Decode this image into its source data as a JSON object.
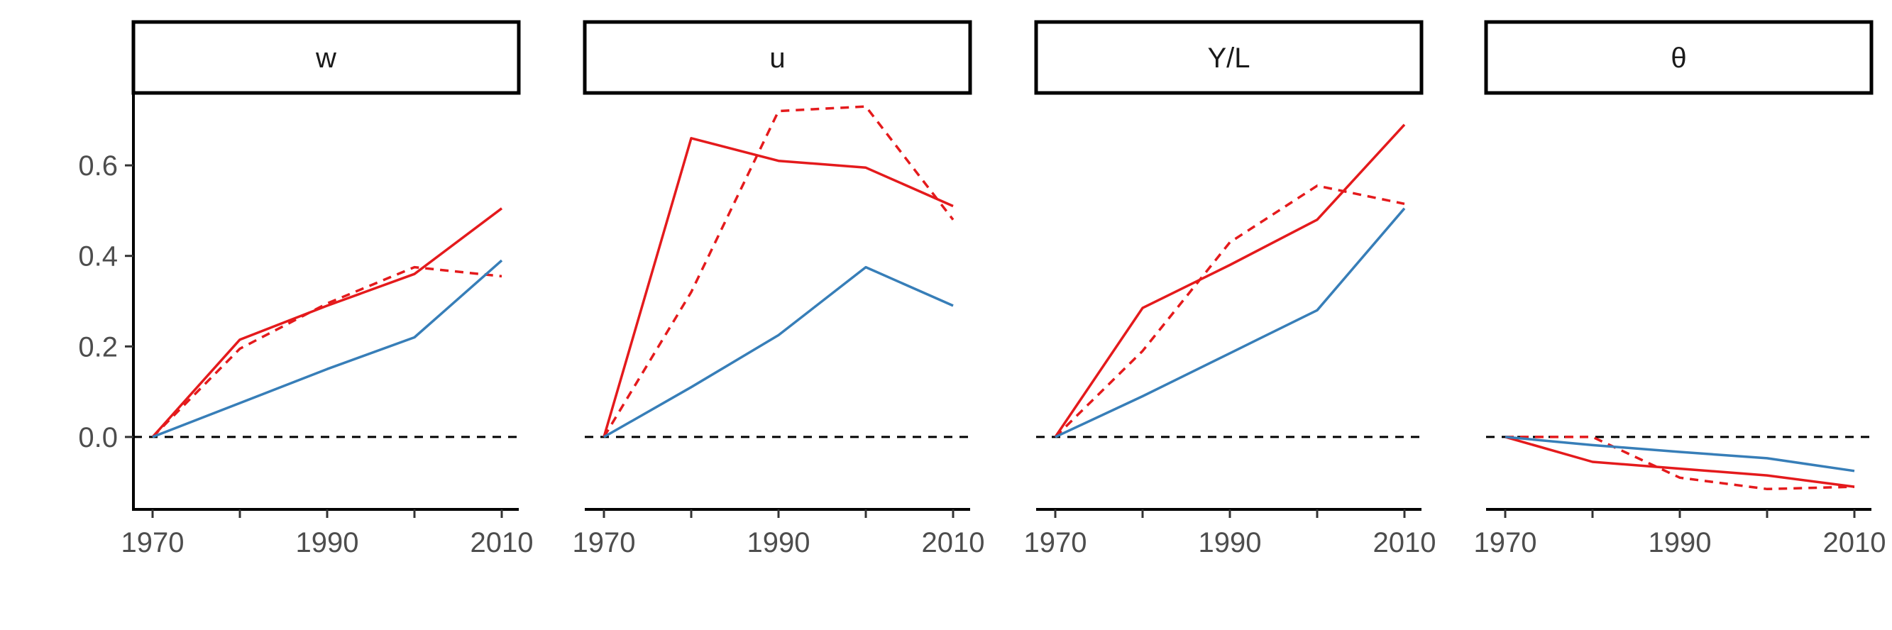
{
  "chart_data": {
    "type": "line",
    "layout": "facet-row",
    "x": [
      1970,
      1980,
      1990,
      2000,
      2010
    ],
    "x_ticks": [
      1970,
      1990,
      2010
    ],
    "y_ticks": [
      "0.0",
      "0.2",
      "0.4",
      "0.6"
    ],
    "ylim": [
      -0.16,
      0.76
    ],
    "xlim": [
      1968,
      2012
    ],
    "shared_y_axis": true,
    "reference_line": {
      "y": 0,
      "style": "dashed",
      "color": "#000000"
    },
    "grid": false,
    "legend": "none",
    "colors": {
      "red": "#e41a1c",
      "blue": "#377eb8",
      "reference": "#000000"
    },
    "panels": [
      {
        "title": "w",
        "series": [
          {
            "color": "red",
            "dash": "solid",
            "values": [
              0.0,
              0.215,
              0.29,
              0.36,
              0.505
            ]
          },
          {
            "color": "red",
            "dash": "dashed",
            "values": [
              0.0,
              0.195,
              0.295,
              0.375,
              0.355
            ]
          },
          {
            "color": "blue",
            "dash": "solid",
            "values": [
              0.0,
              0.075,
              0.15,
              0.22,
              0.39
            ]
          }
        ]
      },
      {
        "title": "u",
        "series": [
          {
            "color": "red",
            "dash": "solid",
            "values": [
              0.0,
              0.66,
              0.61,
              0.595,
              0.51
            ]
          },
          {
            "color": "red",
            "dash": "dashed",
            "values": [
              0.0,
              0.32,
              0.72,
              0.73,
              0.48
            ]
          },
          {
            "color": "blue",
            "dash": "solid",
            "values": [
              0.0,
              0.11,
              0.225,
              0.375,
              0.29
            ]
          }
        ]
      },
      {
        "title": "Y/L",
        "series": [
          {
            "color": "red",
            "dash": "solid",
            "values": [
              0.0,
              0.285,
              0.38,
              0.48,
              0.69
            ]
          },
          {
            "color": "red",
            "dash": "dashed",
            "values": [
              0.0,
              0.19,
              0.43,
              0.555,
              0.515
            ]
          },
          {
            "color": "blue",
            "dash": "solid",
            "values": [
              0.0,
              0.09,
              0.185,
              0.28,
              0.505
            ]
          }
        ]
      },
      {
        "title": "θ",
        "series": [
          {
            "color": "red",
            "dash": "solid",
            "values": [
              0.0,
              -0.055,
              -0.07,
              -0.085,
              -0.11
            ]
          },
          {
            "color": "red",
            "dash": "dashed",
            "values": [
              0.0,
              0.0,
              -0.09,
              -0.115,
              -0.11
            ]
          },
          {
            "color": "blue",
            "dash": "solid",
            "values": [
              0.0,
              -0.018,
              -0.033,
              -0.047,
              -0.075
            ]
          }
        ]
      }
    ]
  }
}
